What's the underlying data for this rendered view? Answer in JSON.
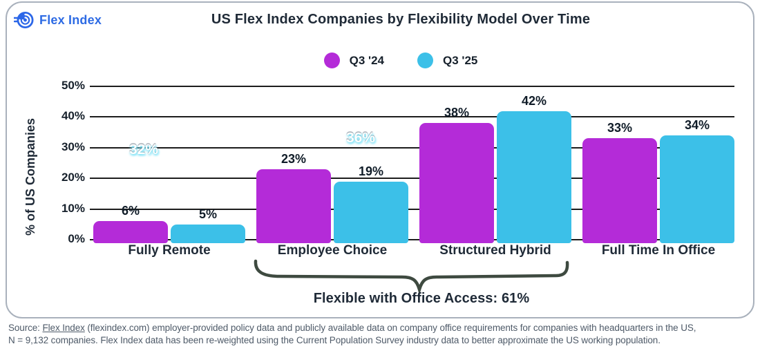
{
  "brand": {
    "name": "Flex Index",
    "color": "#2e6be4"
  },
  "header": {
    "title": "US Flex Index Companies by Flexibility Model Over Time"
  },
  "chart_data": {
    "type": "bar",
    "title": "US Flex Index Companies by Flexibility Model Over Time",
    "categories": [
      "Fully Remote",
      "Employee Choice",
      "Structured Hybrid",
      "Full Time In Office"
    ],
    "series": [
      {
        "name": "Q3 '24",
        "color": "#b42bd8",
        "values": [
          6,
          23,
          38,
          33
        ]
      },
      {
        "name": "Q3 '25",
        "color": "#3cc0e8",
        "values": [
          5,
          19,
          42,
          34
        ]
      }
    ],
    "ylabel": "% of US Companies",
    "ylim": [
      0,
      50
    ],
    "yticks": [
      "0%",
      "10%",
      "20%",
      "30%",
      "40%",
      "50%"
    ],
    "grid": true,
    "legend_position": "top-center",
    "value_label_suffix": "%",
    "overlay_labels": [
      {
        "text": "32%",
        "x": 208,
        "y": 217
      },
      {
        "text": "36%",
        "x": 522,
        "y": 200
      }
    ],
    "annotation": {
      "spans_categories": [
        "Employee Choice",
        "Structured Hybrid"
      ],
      "label": "Flexible with Office Access: 61%"
    }
  },
  "footnote": {
    "source_prefix": "Source: ",
    "link_text": "Flex Index",
    "line1_rest": " (flexindex.com) employer-provided policy data and publicly available data on company office requirements for companies with headquarters in the US,",
    "line2": "N = 9,132 companies. Flex Index data has been re-weighted using the Current Population Survey industry data to better approximate the US working population."
  }
}
